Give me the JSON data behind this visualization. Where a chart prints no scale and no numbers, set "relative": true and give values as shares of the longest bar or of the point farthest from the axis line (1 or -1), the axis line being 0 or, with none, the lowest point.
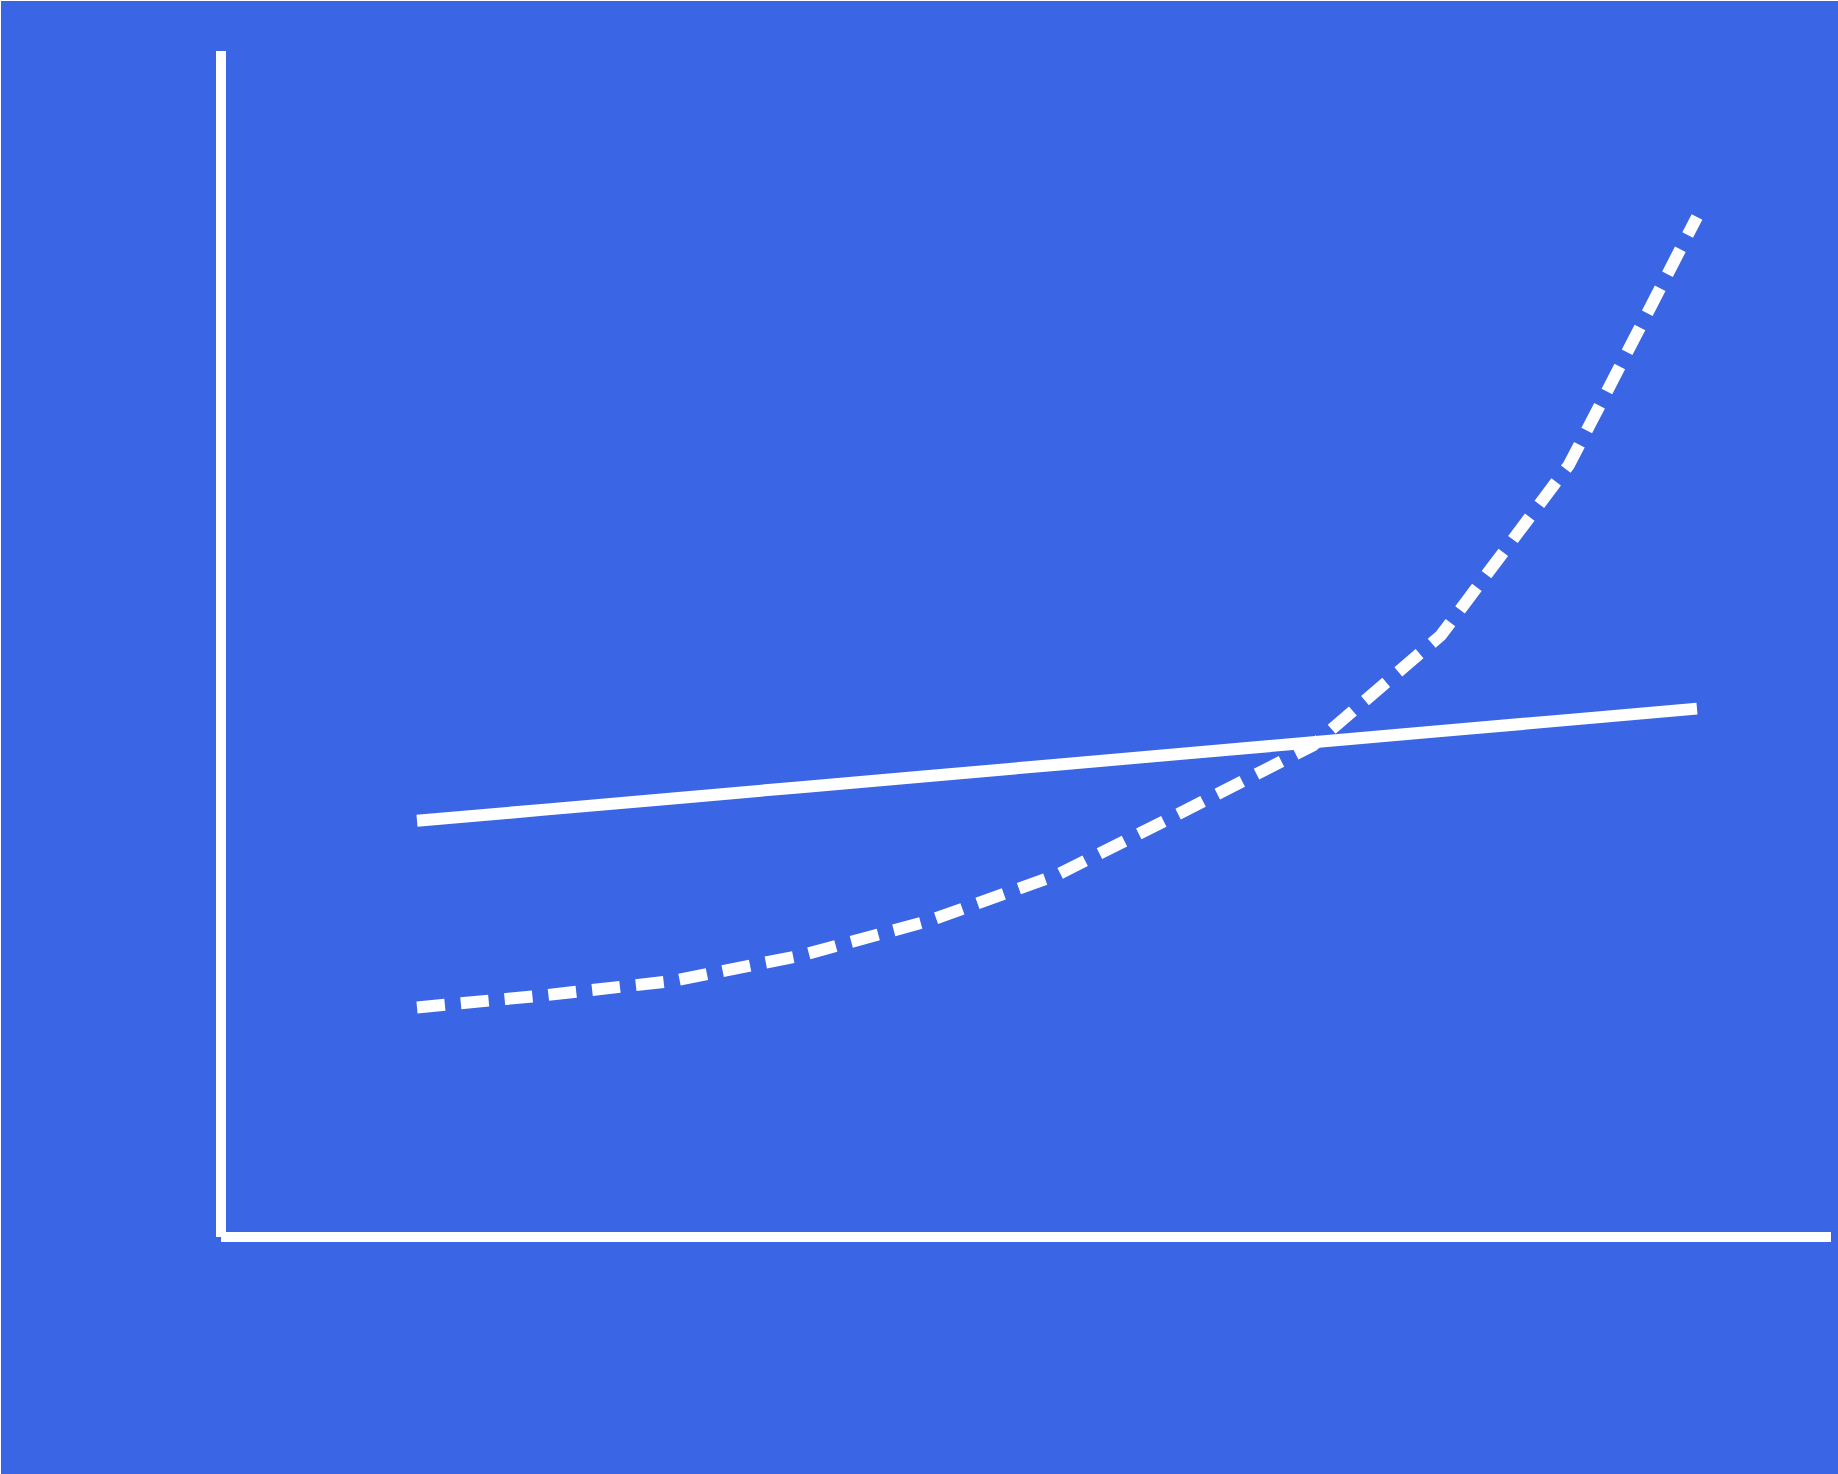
{
  "chart_data": {
    "type": "line",
    "relative": true,
    "grid": false,
    "categories": [
      null,
      null,
      null,
      null,
      null,
      null,
      null,
      null,
      null,
      null,
      null
    ],
    "series": [
      {
        "color": "#ffffff",
        "line_style": "solid",
        "values": [
          0.408,
          0.419,
          0.43,
          0.441,
          0.452,
          0.463,
          0.474,
          0.485,
          0.496,
          0.507,
          0.518
        ]
      },
      {
        "color": "#ffffff",
        "line_style": "dashed",
        "values": [
          0.225,
          0.237,
          0.251,
          0.276,
          0.31,
          0.355,
          0.418,
          0.482,
          0.59,
          0.757,
          1.0
        ]
      }
    ]
  }
}
